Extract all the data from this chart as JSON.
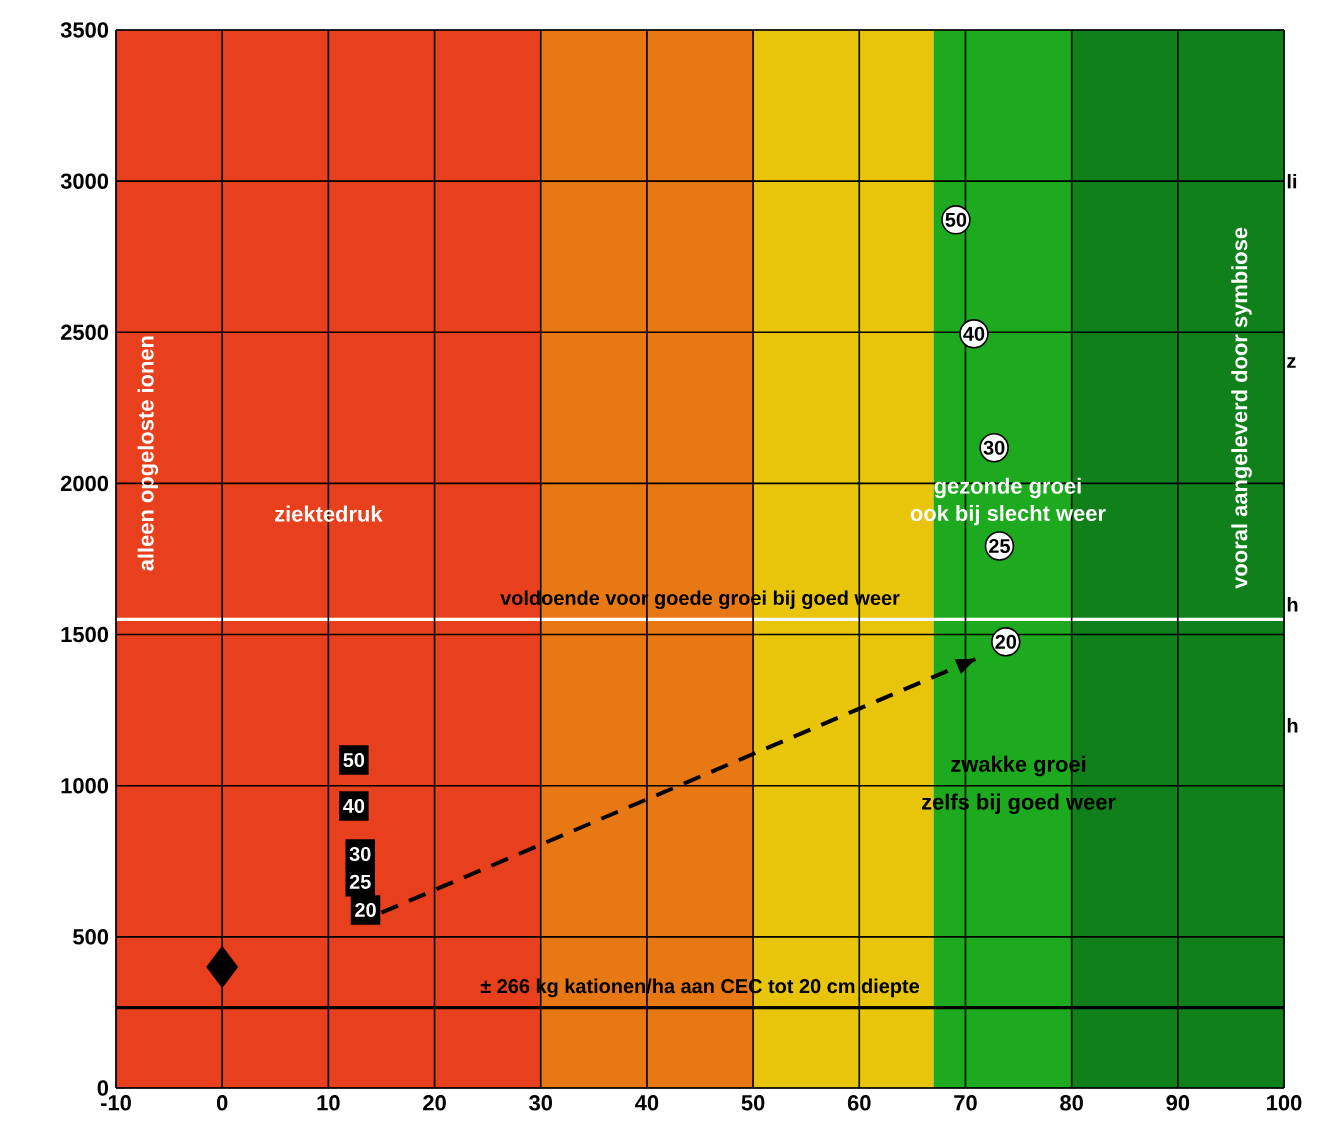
{
  "chart_data": {
    "type": "scatter",
    "xlim": [
      -10,
      100
    ],
    "ylim": [
      0,
      3500
    ],
    "xticks": [
      -10,
      0,
      10,
      20,
      30,
      40,
      50,
      60,
      70,
      80,
      90,
      100
    ],
    "yticks": [
      0,
      500,
      1000,
      1500,
      2000,
      2500,
      3000,
      3500
    ],
    "grid": true,
    "series": [
      {
        "type": "scatter",
        "marker": "diamond",
        "color": "#000000",
        "x": [
          0
        ],
        "values": [
          400
        ]
      },
      {
        "type": "scatter",
        "marker": "square",
        "color": "#000000",
        "x": [
          12.4,
          12.4,
          13,
          13,
          13.5
        ],
        "values": [
          1085,
          933,
          774,
          682,
          589
        ]
      },
      {
        "type": "line",
        "marker": "none",
        "line_style": "dashed",
        "color": "#000000",
        "x": [
          15,
          71
        ],
        "values": [
          580,
          1420
        ]
      },
      {
        "type": "scatter",
        "marker": "circle",
        "color": "#ffffff",
        "x": [
          69.1,
          70.8,
          72.7,
          73.2,
          73.8
        ],
        "values": [
          2872,
          2495,
          2118,
          1793,
          1476
        ]
      }
    ],
    "bands": [
      {
        "axis": "x",
        "from": -10,
        "to": 30,
        "color": "#e8401c"
      },
      {
        "axis": "x",
        "from": 30,
        "to": 50,
        "color": "#e87814"
      },
      {
        "axis": "x",
        "from": 50,
        "to": 67,
        "color": "#e8c40a"
      },
      {
        "axis": "x",
        "from": 67,
        "to": 80,
        "color": "#1eaa1e"
      },
      {
        "axis": "x",
        "from": 80,
        "to": 100,
        "color": "#10801a"
      }
    ],
    "ref_lines": [
      {
        "axis": "y",
        "value": 1550,
        "label": "voldoende voor goede groei bij goed weer",
        "color": "#ffffff"
      },
      {
        "axis": "y",
        "value": 266,
        "label": "± 266 kg kationen/ha aan CEC tot 20 cm diepte",
        "color": "#000000"
      }
    ],
    "annotations": [
      "alleen opgeloste ionen",
      "ziektedruk",
      "gezonde groei",
      "ook bij slecht weer",
      "vooral aangeleverd door symbiose",
      "zwakke groei",
      "zelfs bij goed weer",
      {
        "text": "li",
        "x": 100,
        "y": 3000
      },
      {
        "text": "z",
        "x": 100,
        "y": 2400
      },
      {
        "text": "h",
        "x": 100,
        "y": 1600
      },
      {
        "text": "h",
        "x": 100,
        "y": 1200
      },
      {
        "text": "50",
        "x": 12.4,
        "y": 1085
      },
      {
        "text": "40",
        "x": 12.4,
        "y": 933
      },
      {
        "text": "30",
        "x": 13,
        "y": 774
      },
      {
        "text": "25",
        "x": 13,
        "y": 682
      },
      {
        "text": "20",
        "x": 13.5,
        "y": 589
      },
      {
        "text": "50",
        "x": 69.1,
        "y": 2872
      },
      {
        "text": "40",
        "x": 70.8,
        "y": 2495
      },
      {
        "text": "30",
        "x": 72.7,
        "y": 2118
      },
      {
        "text": "25",
        "x": 73.2,
        "y": 1793
      },
      {
        "text": "20",
        "x": 73.8,
        "y": 1476
      }
    ]
  }
}
